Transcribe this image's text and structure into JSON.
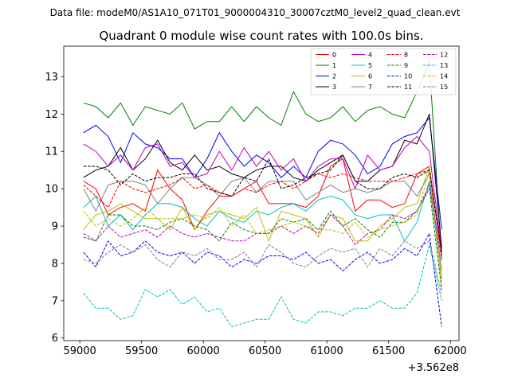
{
  "chart_data": {
    "type": "line",
    "suptitle": "Data file: modeM0/AS1A10_071T01_9000004310_30007cztM0_level2_quad_clean.evt",
    "title": "Quadrant 0 module wise count rates with 100.0s bins.",
    "xlabel": "",
    "ylabel": "",
    "x_offset_label": "+3.562e8",
    "xlim": [
      58870,
      62070
    ],
    "ylim": [
      5.93,
      13.82
    ],
    "xticks": [
      59000,
      59500,
      60000,
      60500,
      61000,
      61500,
      62000
    ],
    "xtick_labels": [
      "59000",
      "59500",
      "60000",
      "60500",
      "61000",
      "61500",
      "62000"
    ],
    "yticks": [
      6,
      7,
      8,
      9,
      10,
      11,
      12,
      13
    ],
    "ytick_labels": [
      "6",
      "7",
      "8",
      "9",
      "10",
      "11",
      "12",
      "13"
    ],
    "legend_position": "top-right",
    "x": [
      59030,
      59130,
      59230,
      59330,
      59430,
      59530,
      59630,
      59730,
      59830,
      59930,
      60030,
      60130,
      60230,
      60330,
      60430,
      60530,
      60630,
      60730,
      60830,
      60930,
      61030,
      61130,
      61230,
      61330,
      61430,
      61530,
      61630,
      61730,
      61830,
      61930
    ],
    "series": [
      {
        "name": "0",
        "color": "#ff0000",
        "dash": "solid",
        "values": [
          10.2,
          10.0,
          9.3,
          9.5,
          9.6,
          9.4,
          10.5,
          10.0,
          9.7,
          8.9,
          9.4,
          9.8,
          9.8,
          10.0,
          10.2,
          9.6,
          9.6,
          9.6,
          9.5,
          9.8,
          10.6,
          10.8,
          9.4,
          9.7,
          9.7,
          9.5,
          9.6,
          10.4,
          10.6,
          8.2
        ]
      },
      {
        "name": "1",
        "color": "#008000",
        "dash": "solid",
        "values": [
          12.3,
          12.2,
          11.9,
          12.3,
          11.7,
          12.2,
          12.1,
          12.0,
          12.3,
          11.6,
          11.8,
          11.8,
          12.2,
          11.8,
          12.2,
          11.9,
          11.7,
          12.6,
          12.0,
          11.8,
          11.9,
          12.2,
          11.8,
          12.1,
          12.2,
          12.0,
          11.9,
          12.6,
          13.4,
          8.1
        ]
      },
      {
        "name": "2",
        "color": "#0000ff",
        "dash": "solid",
        "values": [
          11.5,
          11.7,
          11.4,
          10.7,
          11.5,
          11.2,
          11.1,
          10.8,
          10.8,
          10.3,
          10.8,
          11.5,
          11.0,
          10.6,
          10.9,
          10.7,
          10.3,
          10.6,
          10.3,
          11.0,
          11.3,
          11.2,
          10.9,
          10.4,
          10.6,
          11.2,
          11.4,
          11.5,
          11.9,
          8.9
        ]
      },
      {
        "name": "3",
        "color": "#000000",
        "dash": "solid",
        "values": [
          10.3,
          10.5,
          10.6,
          11.1,
          10.5,
          10.8,
          11.3,
          10.7,
          10.5,
          10.9,
          10.5,
          10.6,
          10.4,
          10.3,
          10.5,
          10.6,
          10.6,
          10.3,
          10.2,
          10.5,
          10.7,
          10.9,
          10.2,
          10.2,
          10.5,
          10.6,
          11.3,
          11.2,
          12.0,
          8.4
        ]
      },
      {
        "name": "4",
        "color": "#bf00bf",
        "dash": "solid",
        "values": [
          11.2,
          11.0,
          10.6,
          10.9,
          10.5,
          11.1,
          11.2,
          10.6,
          10.7,
          10.3,
          10.4,
          11.0,
          10.5,
          11.1,
          10.6,
          11.0,
          10.5,
          10.8,
          10.2,
          10.6,
          10.8,
          10.8,
          10.0,
          10.9,
          10.5,
          10.6,
          11.1,
          11.4,
          11.0,
          8.3
        ]
      },
      {
        "name": "5",
        "color": "#00bfbf",
        "dash": "solid",
        "values": [
          9.5,
          9.8,
          9.0,
          9.3,
          8.9,
          9.3,
          9.6,
          9.6,
          9.5,
          9.2,
          9.0,
          9.4,
          9.2,
          9.1,
          9.4,
          9.3,
          9.5,
          9.6,
          9.4,
          9.7,
          9.8,
          9.7,
          9.3,
          9.2,
          9.3,
          9.3,
          8.6,
          9.1,
          10.2,
          7.6
        ]
      },
      {
        "name": "6",
        "color": "#bfbf00",
        "dash": "solid",
        "values": [
          8.9,
          9.3,
          9.4,
          9.6,
          9.4,
          9.2,
          9.2,
          8.9,
          9.5,
          8.9,
          9.3,
          9.4,
          9.3,
          9.2,
          9.5,
          8.6,
          9.4,
          9.3,
          9.2,
          8.7,
          9.3,
          9.2,
          8.6,
          8.6,
          9.0,
          9.2,
          9.5,
          9.6,
          10.6,
          7.5
        ]
      },
      {
        "name": "7",
        "color": "#808080",
        "dash": "solid",
        "values": [
          10.0,
          9.4,
          10.1,
          10.2,
          10.2,
          10.1,
          9.6,
          10.0,
          10.3,
          10.3,
          10.1,
          9.8,
          10.2,
          10.3,
          9.9,
          10.2,
          10.2,
          10.2,
          9.7,
          9.9,
          10.1,
          9.9,
          10.0,
          9.9,
          10.0,
          10.2,
          10.2,
          9.8,
          10.4,
          7.8
        ]
      },
      {
        "name": "8",
        "color": "#ff0000",
        "dash": "dashed",
        "values": [
          10.1,
          9.8,
          9.5,
          10.2,
          10.0,
          9.9,
          10.0,
          10.1,
          10.3,
          10.0,
          10.1,
          9.9,
          9.8,
          10.0,
          9.9,
          10.1,
          10.2,
          10.0,
          10.2,
          10.4,
          10.3,
          10.4,
          10.3,
          10.2,
          10.2,
          10.2,
          10.3,
          10.4,
          10.5,
          8.2
        ]
      },
      {
        "name": "9",
        "color": "#008000",
        "dash": "dashed",
        "values": [
          8.7,
          8.6,
          9.3,
          9.3,
          9.0,
          9.0,
          8.9,
          9.1,
          9.2,
          9.0,
          8.9,
          8.6,
          9.1,
          8.9,
          8.8,
          8.8,
          9.2,
          9.1,
          9.2,
          8.9,
          9.4,
          9.0,
          9.2,
          8.9,
          8.7,
          9.1,
          9.1,
          9.4,
          10.0,
          7.3
        ]
      },
      {
        "name": "10",
        "color": "#0000ff",
        "dash": "dashed",
        "values": [
          8.3,
          7.9,
          8.6,
          8.2,
          8.3,
          8.6,
          8.3,
          8.2,
          8.3,
          8.0,
          8.3,
          8.2,
          7.9,
          8.1,
          8.0,
          8.2,
          8.2,
          8.1,
          8.3,
          8.0,
          8.1,
          7.8,
          8.1,
          8.3,
          8.0,
          8.1,
          8.4,
          8.2,
          8.8,
          6.3
        ]
      },
      {
        "name": "11",
        "color": "#000000",
        "dash": "dashed",
        "values": [
          10.6,
          10.6,
          10.5,
          10.1,
          10.4,
          10.2,
          10.3,
          10.3,
          10.4,
          10.4,
          10.0,
          9.9,
          9.8,
          10.3,
          10.2,
          10.8,
          10.0,
          10.1,
          10.3,
          10.4,
          10.5,
          10.9,
          10.2,
          10.0,
          10.0,
          10.3,
          10.4,
          10.3,
          10.5,
          8.3
        ]
      },
      {
        "name": "12",
        "color": "#bf00bf",
        "dash": "dashed",
        "values": [
          8.8,
          8.6,
          9.0,
          8.7,
          8.8,
          8.9,
          8.7,
          9.0,
          8.8,
          8.7,
          8.8,
          8.7,
          8.6,
          8.6,
          8.8,
          8.8,
          9.0,
          8.8,
          9.0,
          8.8,
          9.3,
          9.0,
          8.5,
          8.8,
          8.9,
          9.3,
          9.2,
          9.4,
          10.1,
          8.1
        ]
      },
      {
        "name": "13",
        "color": "#00bfbf",
        "dash": "dashed",
        "values": [
          7.2,
          6.8,
          6.8,
          6.5,
          6.6,
          7.3,
          7.1,
          7.3,
          6.9,
          7.1,
          6.7,
          6.8,
          6.3,
          6.4,
          6.5,
          6.5,
          7.1,
          6.5,
          6.4,
          6.7,
          6.7,
          6.6,
          6.8,
          6.8,
          7.0,
          6.8,
          6.8,
          7.2,
          8.5,
          7.0
        ]
      },
      {
        "name": "14",
        "color": "#bfbf00",
        "dash": "dashed",
        "values": [
          9.4,
          9.0,
          9.2,
          9.0,
          9.2,
          9.5,
          9.2,
          9.2,
          9.2,
          9.3,
          9.2,
          9.5,
          9.0,
          9.3,
          8.8,
          8.9,
          9.0,
          9.1,
          9.0,
          8.9,
          8.9,
          8.8,
          9.1,
          8.7,
          8.9,
          9.0,
          9.1,
          9.3,
          10.5,
          7.4
        ]
      },
      {
        "name": "15",
        "color": "#808080",
        "dash": "dashed",
        "values": [
          8.1,
          8.0,
          8.3,
          8.5,
          8.3,
          8.5,
          8.1,
          7.9,
          8.3,
          8.2,
          8.4,
          8.1,
          8.1,
          8.3,
          7.9,
          8.5,
          8.3,
          8.0,
          7.9,
          8.2,
          8.4,
          8.3,
          8.4,
          7.9,
          8.4,
          8.2,
          8.6,
          8.4,
          8.6,
          7.2
        ]
      }
    ]
  }
}
